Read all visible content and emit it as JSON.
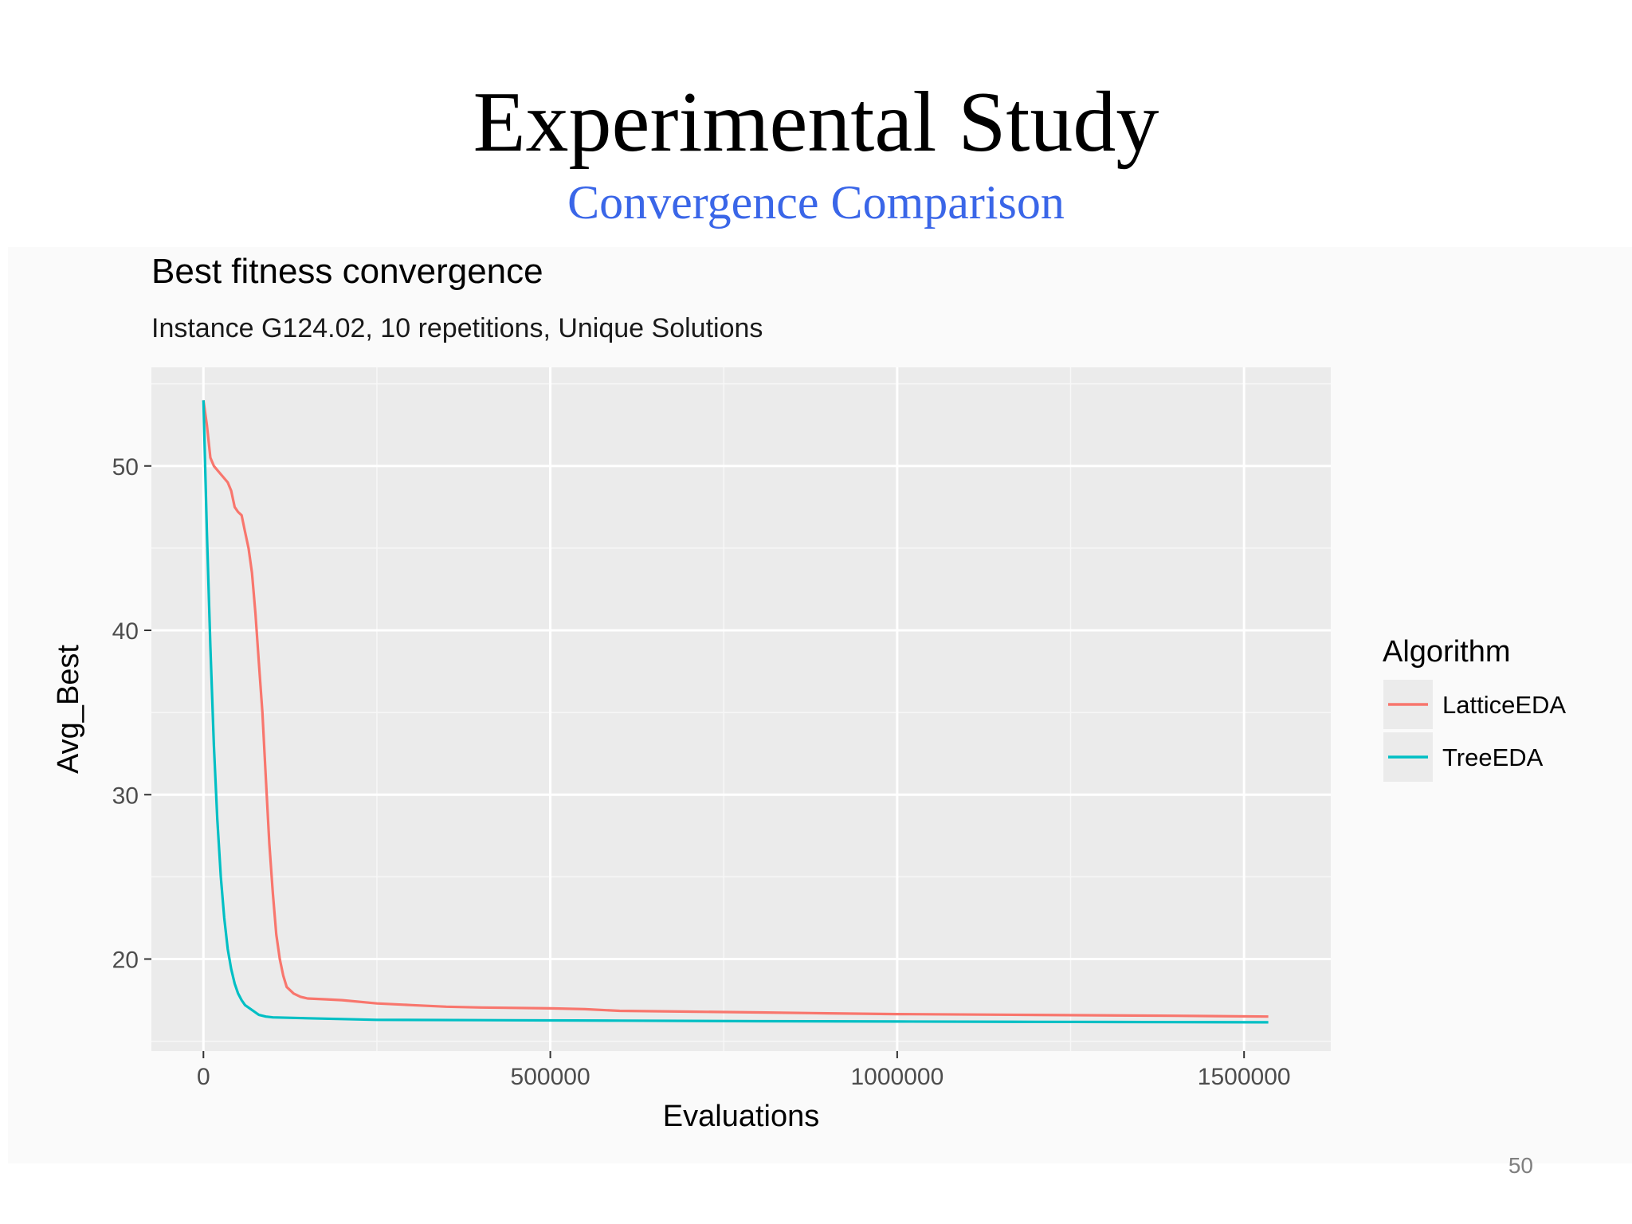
{
  "slide": {
    "title": "Experimental Study",
    "subtitle": "Convergence Comparison",
    "page_number": "50",
    "subtitle_color": "#3a66e8"
  },
  "chart_data": {
    "type": "line",
    "title": "Best fitness convergence",
    "subtitle": "Instance G124.02, 10 repetitions, Unique Solutions",
    "xlabel": "Evaluations",
    "ylabel": "Avg_Best",
    "xlim": [
      -75000,
      1625000
    ],
    "ylim": [
      14.4,
      56.0
    ],
    "x_ticks": [
      0,
      500000,
      1000000,
      1500000
    ],
    "x_tick_labels": [
      "0",
      "500000",
      "1000000",
      "1500000"
    ],
    "y_ticks": [
      20,
      30,
      40,
      50
    ],
    "y_tick_labels": [
      "20",
      "30",
      "40",
      "50"
    ],
    "grid": true,
    "legend_title": "Algorithm",
    "legend_position": "right",
    "series": [
      {
        "name": "LatticeEDA",
        "color": "#f8766d",
        "x": [
          0,
          5000,
          10000,
          15000,
          25000,
          35000,
          40000,
          45000,
          50000,
          55000,
          60000,
          65000,
          70000,
          75000,
          80000,
          85000,
          90000,
          95000,
          100000,
          105000,
          110000,
          115000,
          120000,
          130000,
          140000,
          150000,
          175000,
          200000,
          250000,
          300000,
          350000,
          400000,
          500000,
          550000,
          600000,
          700000,
          800000,
          900000,
          1000000,
          1200000,
          1400000,
          1535000
        ],
        "y": [
          54,
          52.5,
          50.5,
          50,
          49.5,
          49,
          48.5,
          47.5,
          47.2,
          47,
          46,
          45,
          43.5,
          41,
          38,
          35,
          31,
          27,
          24,
          21.5,
          20,
          19,
          18.3,
          17.9,
          17.7,
          17.6,
          17.55,
          17.5,
          17.3,
          17.2,
          17.1,
          17.05,
          17.0,
          16.95,
          16.85,
          16.8,
          16.75,
          16.7,
          16.65,
          16.6,
          16.55,
          16.5
        ]
      },
      {
        "name": "TreeEDA",
        "color": "#00bfc4",
        "x": [
          0,
          5000,
          10000,
          15000,
          20000,
          25000,
          30000,
          35000,
          40000,
          45000,
          50000,
          55000,
          60000,
          70000,
          80000,
          90000,
          100000,
          150000,
          200000,
          250000,
          400000,
          600000,
          800000,
          1000000,
          1200000,
          1400000,
          1535000
        ],
        "y": [
          54,
          46,
          39,
          33,
          28.5,
          25,
          22.5,
          20.6,
          19.4,
          18.5,
          17.9,
          17.5,
          17.2,
          16.9,
          16.6,
          16.5,
          16.45,
          16.4,
          16.35,
          16.3,
          16.28,
          16.25,
          16.22,
          16.2,
          16.18,
          16.16,
          16.15
        ]
      }
    ]
  }
}
